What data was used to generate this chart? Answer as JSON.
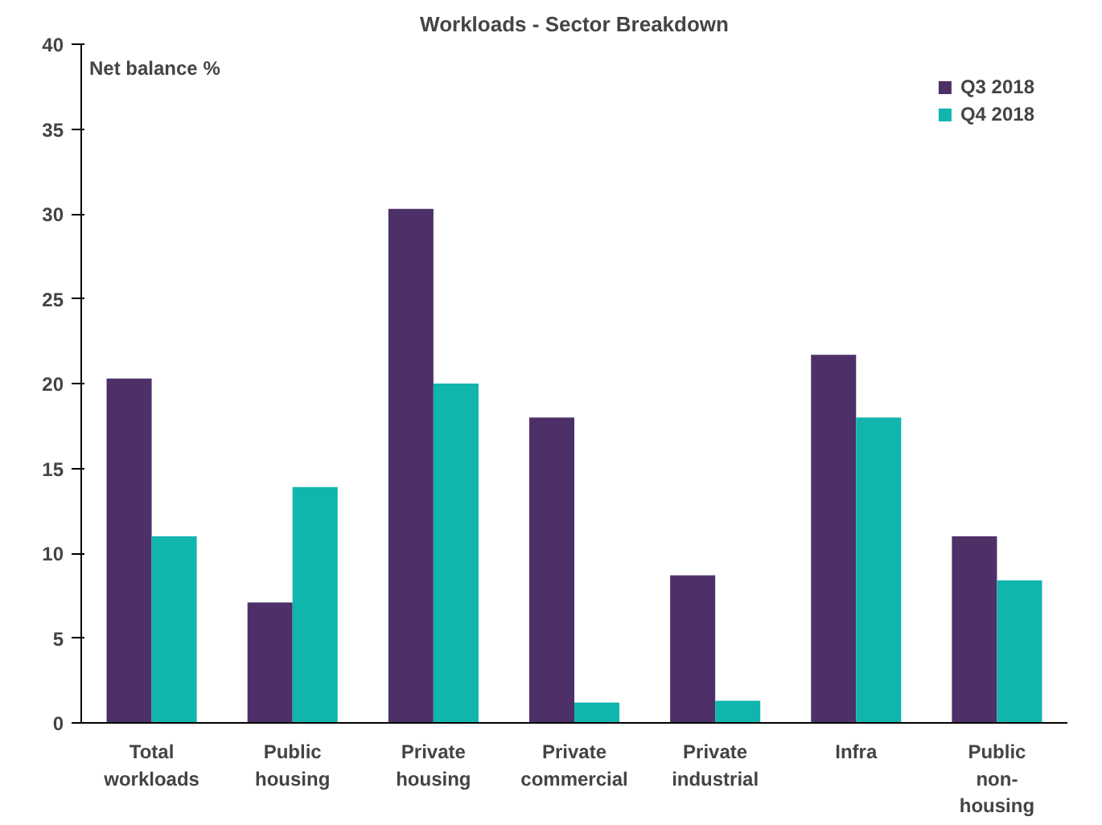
{
  "chart_data": {
    "type": "bar",
    "title": "Workloads - Sector Breakdown",
    "ylabel": "Net balance %",
    "categories": [
      "Total workloads",
      "Public housing",
      "Private housing",
      "Private commercial",
      "Private industrial",
      "Infra",
      "Public non-housing"
    ],
    "series": [
      {
        "name": "Q3 2018",
        "color": "#4e3068",
        "values": [
          20.3,
          7.1,
          30.3,
          18.0,
          8.7,
          21.7,
          11.0
        ]
      },
      {
        "name": "Q4 2018",
        "color": "#10b5ae",
        "values": [
          11.0,
          13.9,
          20.0,
          1.2,
          1.3,
          18.0,
          8.4
        ]
      }
    ],
    "ylim": [
      0,
      40
    ],
    "yticks": [
      0,
      5,
      10,
      15,
      20,
      25,
      30,
      35,
      40
    ],
    "grid": false,
    "legend": "top right"
  }
}
